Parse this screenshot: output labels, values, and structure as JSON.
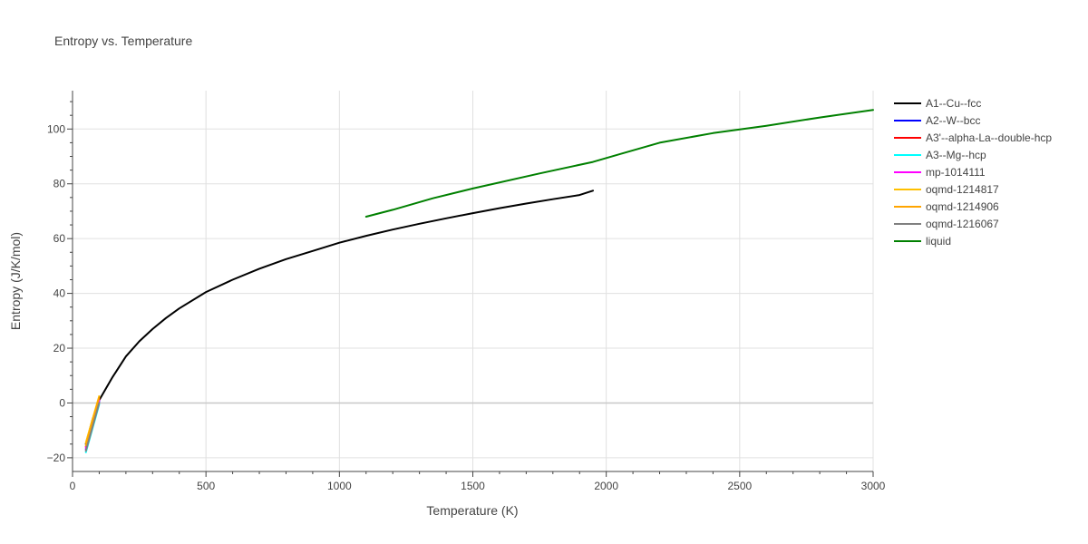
{
  "chart_data": {
    "type": "line",
    "title": "Entropy vs. Temperature",
    "xlabel": "Temperature (K)",
    "ylabel": "Entropy (J/K/mol)",
    "xlim": [
      0,
      3000
    ],
    "ylim": [
      -25,
      114
    ],
    "xticks": [
      0,
      500,
      1000,
      1500,
      2000,
      2500,
      3000
    ],
    "yticks": [
      -20,
      0,
      20,
      40,
      60,
      80,
      100
    ],
    "grid": true,
    "legend_position": "top-right",
    "series": [
      {
        "name": "A1--Cu--fcc",
        "color": "#000000",
        "x": [
          50,
          75,
          100,
          150,
          200,
          250,
          300,
          350,
          400,
          500,
          600,
          700,
          800,
          900,
          1000,
          1100,
          1200,
          1300,
          1400,
          1500,
          1600,
          1700,
          1800,
          1900,
          1950
        ],
        "y": [
          -15,
          -6,
          1,
          9.5,
          17,
          22.5,
          27,
          31,
          34.5,
          40.5,
          45,
          49,
          52.5,
          55.5,
          58.5,
          61,
          63.3,
          65.4,
          67.4,
          69.3,
          71.1,
          72.8,
          74.4,
          75.9,
          77.5
        ]
      },
      {
        "name": "A2--W--bcc",
        "color": "#0000ff",
        "x": [
          50,
          100
        ],
        "y": [
          -17,
          0.5
        ]
      },
      {
        "name": "A3'--alpha-La--double-hcp",
        "color": "#ff0000",
        "x": [
          50,
          100
        ],
        "y": [
          -16,
          1.5
        ]
      },
      {
        "name": "A3--Mg--hcp",
        "color": "#00ffff",
        "x": [
          50,
          100
        ],
        "y": [
          -18,
          -0.5
        ]
      },
      {
        "name": "mp-1014111",
        "color": "#ff00ff",
        "x": [
          50,
          100
        ],
        "y": [
          -16.5,
          1
        ]
      },
      {
        "name": "oqmd-1214817",
        "color": "#ffc000",
        "x": [
          50,
          100
        ],
        "y": [
          -14.5,
          2.5
        ]
      },
      {
        "name": "oqmd-1214906",
        "color": "#ffa500",
        "x": [
          50,
          100
        ],
        "y": [
          -15.5,
          2
        ]
      },
      {
        "name": "oqmd-1216067",
        "color": "#808080",
        "x": [
          50,
          100
        ],
        "y": [
          -17.5,
          0
        ]
      },
      {
        "name": "liquid",
        "color": "#008000",
        "x": [
          1100,
          1200,
          1350,
          1500,
          1750,
          1950,
          2050,
          2200,
          2400,
          2600,
          2800,
          3000
        ],
        "y": [
          68,
          70.5,
          74.7,
          78.3,
          83.8,
          88,
          90.8,
          95,
          98.5,
          101.2,
          104.2,
          107
        ]
      }
    ]
  }
}
